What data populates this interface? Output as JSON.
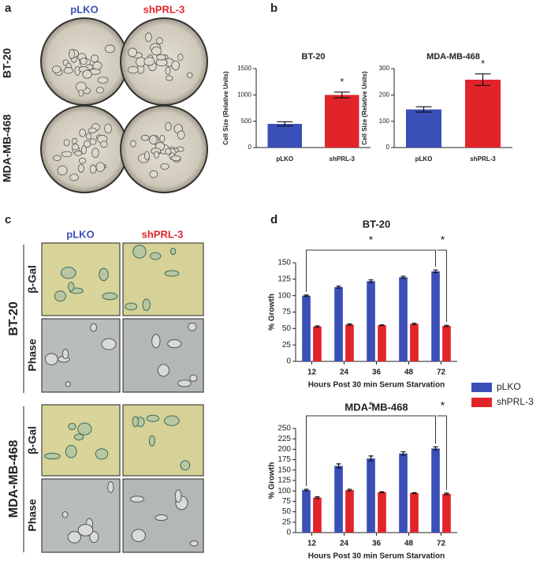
{
  "panel_labels": [
    "a",
    "b",
    "c",
    "d"
  ],
  "panel_a": {
    "columns": [
      "pLKO",
      "shPRL-3"
    ],
    "rows": [
      "BT-20",
      "MDA-MB-468"
    ]
  },
  "panel_c": {
    "columns": [
      "pLKO",
      "shPRL-3"
    ],
    "rows": [
      "BT-20",
      "MDA-MB-468"
    ],
    "stains": [
      "β-Gal",
      "Phase"
    ]
  },
  "chart_data": [
    {
      "type": "bar",
      "title": "BT-20",
      "y_label": "Cell Size (Relative Units)",
      "categories": [
        "pLKO",
        "shPRL-3"
      ],
      "values": [
        450,
        1000
      ],
      "errors": [
        40,
        55
      ],
      "colors": [
        "#3b4fb8",
        "#e0242a"
      ],
      "annotations": [
        "*"
      ],
      "ylim": [
        0,
        1500
      ],
      "yticks": [
        0,
        500,
        1000,
        1500
      ]
    },
    {
      "type": "bar",
      "title": "MDA-MB-468",
      "y_label": "Cell Size (Relative Units)",
      "categories": [
        "pLKO",
        "shPRL-3"
      ],
      "values": [
        145,
        258
      ],
      "errors": [
        10,
        22
      ],
      "colors": [
        "#3b4fb8",
        "#e0242a"
      ],
      "annotations": [
        "*"
      ],
      "ylim": [
        0,
        300
      ],
      "yticks": [
        0,
        100,
        200,
        300
      ]
    },
    {
      "type": "grouped_bar",
      "title": "BT-20",
      "x_label": "Hours Post 30 min Serum Starvation",
      "y_label": "% Growth",
      "categories": [
        "12",
        "24",
        "36",
        "48",
        "72"
      ],
      "series": [
        {
          "name": "pLKO",
          "color": "#3b4fb8",
          "values": [
            100,
            113,
            122,
            128,
            137
          ],
          "errors": [
            1,
            1.5,
            2,
            1.5,
            2
          ]
        },
        {
          "name": "shPRL-3",
          "color": "#e0242a",
          "values": [
            53,
            56,
            55,
            57,
            54
          ],
          "errors": [
            1,
            1,
            0.5,
            1,
            1
          ]
        }
      ],
      "annotations": [
        "*",
        "*"
      ],
      "legend": true,
      "ylim": [
        0,
        150
      ],
      "yticks": [
        0,
        25,
        50,
        75,
        100,
        125,
        150
      ]
    },
    {
      "type": "grouped_bar",
      "title": "MDA-MB-468",
      "x_label": "Hours Post 30 min Serum Starvation",
      "y_label": "% Growth",
      "categories": [
        "12",
        "24",
        "36",
        "48",
        "72"
      ],
      "series": [
        {
          "color": "#3b4fb8",
          "values": [
            102,
            160,
            178,
            190,
            202
          ],
          "errors": [
            2,
            5,
            6,
            4,
            4
          ]
        },
        {
          "color": "#e0242a",
          "values": [
            84,
            102,
            97,
            95,
            93
          ],
          "errors": [
            2,
            2,
            1,
            1,
            2
          ]
        }
      ],
      "annotations": [
        "*",
        "*"
      ],
      "legend": false,
      "ylim": [
        0,
        250
      ],
      "yticks": [
        0,
        25,
        50,
        75,
        100,
        125,
        150,
        175,
        200,
        225,
        250
      ]
    }
  ]
}
